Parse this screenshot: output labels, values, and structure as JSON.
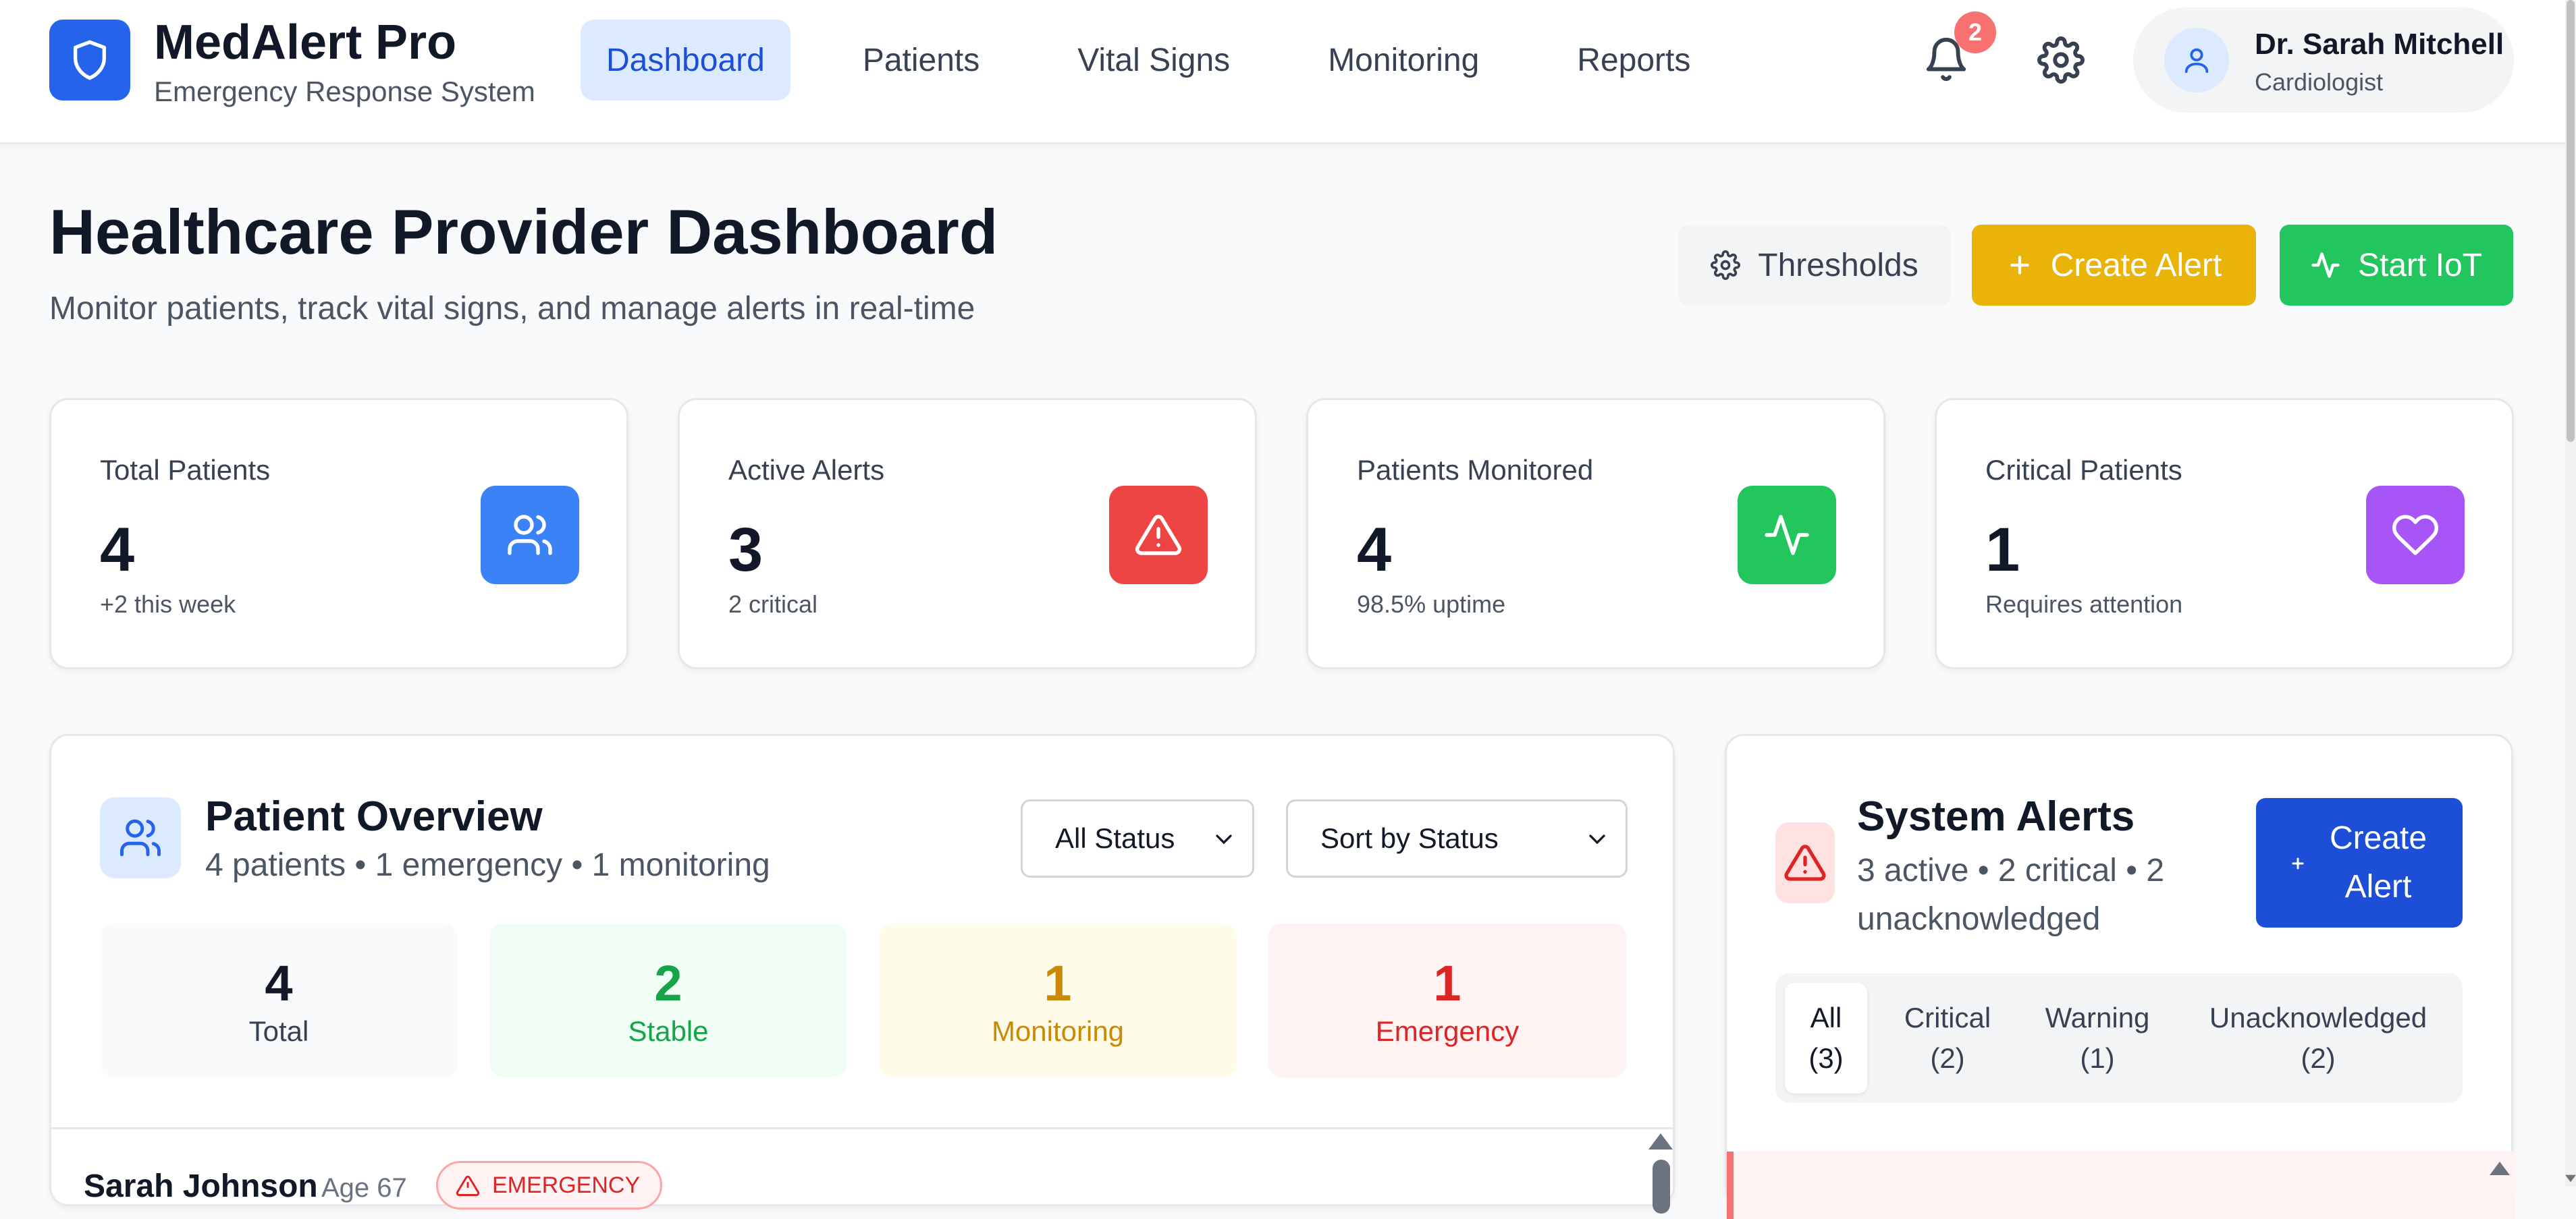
{
  "brand": {
    "name": "MedAlert Pro",
    "subtitle": "Emergency Response System"
  },
  "nav": {
    "items": [
      {
        "label": "Dashboard",
        "active": true
      },
      {
        "label": "Patients"
      },
      {
        "label": "Vital Signs"
      },
      {
        "label": "Monitoring"
      },
      {
        "label": "Reports"
      }
    ]
  },
  "header": {
    "notification_count": "2"
  },
  "user": {
    "name": "Dr. Sarah Mitchell",
    "role": "Cardiologist"
  },
  "page": {
    "title": "Healthcare Provider Dashboard",
    "subtitle": "Monitor patients, track vital signs, and manage alerts in real-time"
  },
  "actions": {
    "thresholds": "Thresholds",
    "create_alert": "Create Alert",
    "start_iot": "Start IoT"
  },
  "stats": [
    {
      "label": "Total Patients",
      "value": "4",
      "note": "+2 this week",
      "icon": "users-icon",
      "color": "#3b82f6"
    },
    {
      "label": "Active Alerts",
      "value": "3",
      "note": "2 critical",
      "icon": "alert-triangle-icon",
      "color": "#ef4444"
    },
    {
      "label": "Patients Monitored",
      "value": "4",
      "note": "98.5% uptime",
      "icon": "activity-icon",
      "color": "#22c55e"
    },
    {
      "label": "Critical Patients",
      "value": "1",
      "note": "Requires attention",
      "icon": "heart-icon",
      "color": "#a855f7"
    }
  ],
  "patient_overview": {
    "title": "Patient Overview",
    "subtitle": "4 patients • 1 emergency • 1 monitoring",
    "status_filter": "All Status",
    "sort": "Sort by Status",
    "tiles": [
      {
        "value": "4",
        "label": "Total",
        "bg": "#f9fafb",
        "color": "#111827",
        "label_color": "#374151"
      },
      {
        "value": "2",
        "label": "Stable",
        "bg": "#f0fdf4",
        "color": "#16a34a",
        "label_color": "#16a34a"
      },
      {
        "value": "1",
        "label": "Monitoring",
        "bg": "#fefce8",
        "color": "#ca8a04",
        "label_color": "#ca8a04"
      },
      {
        "value": "1",
        "label": "Emergency",
        "bg": "#fef2f2",
        "color": "#dc2626",
        "label_color": "#dc2626"
      }
    ],
    "first_row": {
      "name": "Sarah Johnson",
      "age": "Age 67",
      "status": "EMERGENCY"
    }
  },
  "system_alerts": {
    "title": "System Alerts",
    "subtitle": "3 active • 2 critical • 2 unacknowledged",
    "create_label": "Create Alert",
    "tabs": [
      {
        "label": "All",
        "count": "(3)",
        "active": true
      },
      {
        "label": "Critical",
        "count": "(2)"
      },
      {
        "label": "Warning",
        "count": "(1)"
      },
      {
        "label": "Unacknowledged",
        "count": "(2)"
      }
    ]
  }
}
